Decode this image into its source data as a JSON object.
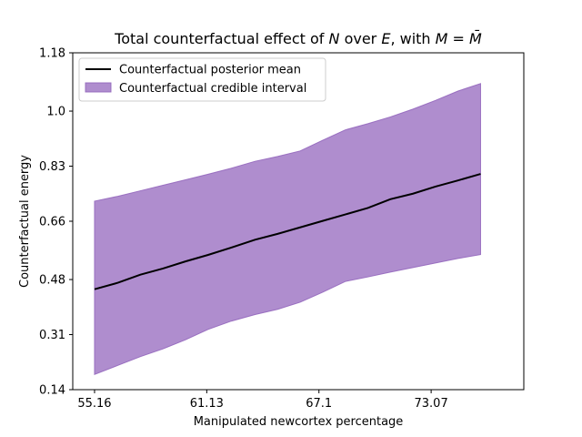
{
  "chart_data": {
    "type": "area",
    "title_parts": {
      "prefix": "Total counterfactual effect of ",
      "n_symbol": "N",
      "middle": " over ",
      "e_symbol": "E",
      "suffix": ", with ",
      "m_symbol": "M",
      "equals": " = ",
      "mbar_symbol": "M̄"
    },
    "xlabel": "Manipulated newcortex percentage",
    "ylabel": "Counterfactual energy",
    "xlim": [
      54.0,
      78.0
    ],
    "ylim": [
      0.14,
      1.18
    ],
    "xticks": [
      55.16,
      61.13,
      67.1,
      73.07
    ],
    "xtick_labels": [
      "55.16",
      "61.13",
      "67.1",
      "73.07"
    ],
    "yticks": [
      0.14,
      0.31,
      0.48,
      0.66,
      0.83,
      1.0,
      1.18
    ],
    "ytick_labels": [
      "0.14",
      "0.31",
      "0.48",
      "0.66",
      "0.83",
      "1.0",
      "1.18"
    ],
    "x": [
      55.16,
      56.4,
      57.6,
      58.8,
      60.0,
      61.2,
      62.4,
      63.7,
      64.9,
      66.1,
      67.3,
      68.5,
      69.7,
      70.9,
      72.1,
      73.3,
      74.5,
      75.7
    ],
    "series": [
      {
        "name": "Counterfactual posterior mean",
        "role": "line",
        "color": "#000000",
        "values": [
          0.45,
          0.47,
          0.495,
          0.514,
          0.536,
          0.556,
          0.578,
          0.603,
          0.621,
          0.641,
          0.661,
          0.681,
          0.701,
          0.728,
          0.745,
          0.767,
          0.786,
          0.806
        ]
      },
      {
        "name": "Counterfactual credible interval",
        "role": "band",
        "color": "#9467bd",
        "alpha": 0.75,
        "lower": [
          0.187,
          0.215,
          0.242,
          0.266,
          0.294,
          0.326,
          0.351,
          0.372,
          0.388,
          0.41,
          0.441,
          0.474,
          0.488,
          0.503,
          0.517,
          0.531,
          0.545,
          0.557
        ],
        "upper": [
          0.722,
          0.737,
          0.754,
          0.771,
          0.788,
          0.805,
          0.823,
          0.845,
          0.86,
          0.877,
          0.91,
          0.942,
          0.961,
          0.982,
          1.006,
          1.033,
          1.062,
          1.085
        ]
      }
    ],
    "legend": {
      "position": "top-left"
    },
    "grid": false
  }
}
